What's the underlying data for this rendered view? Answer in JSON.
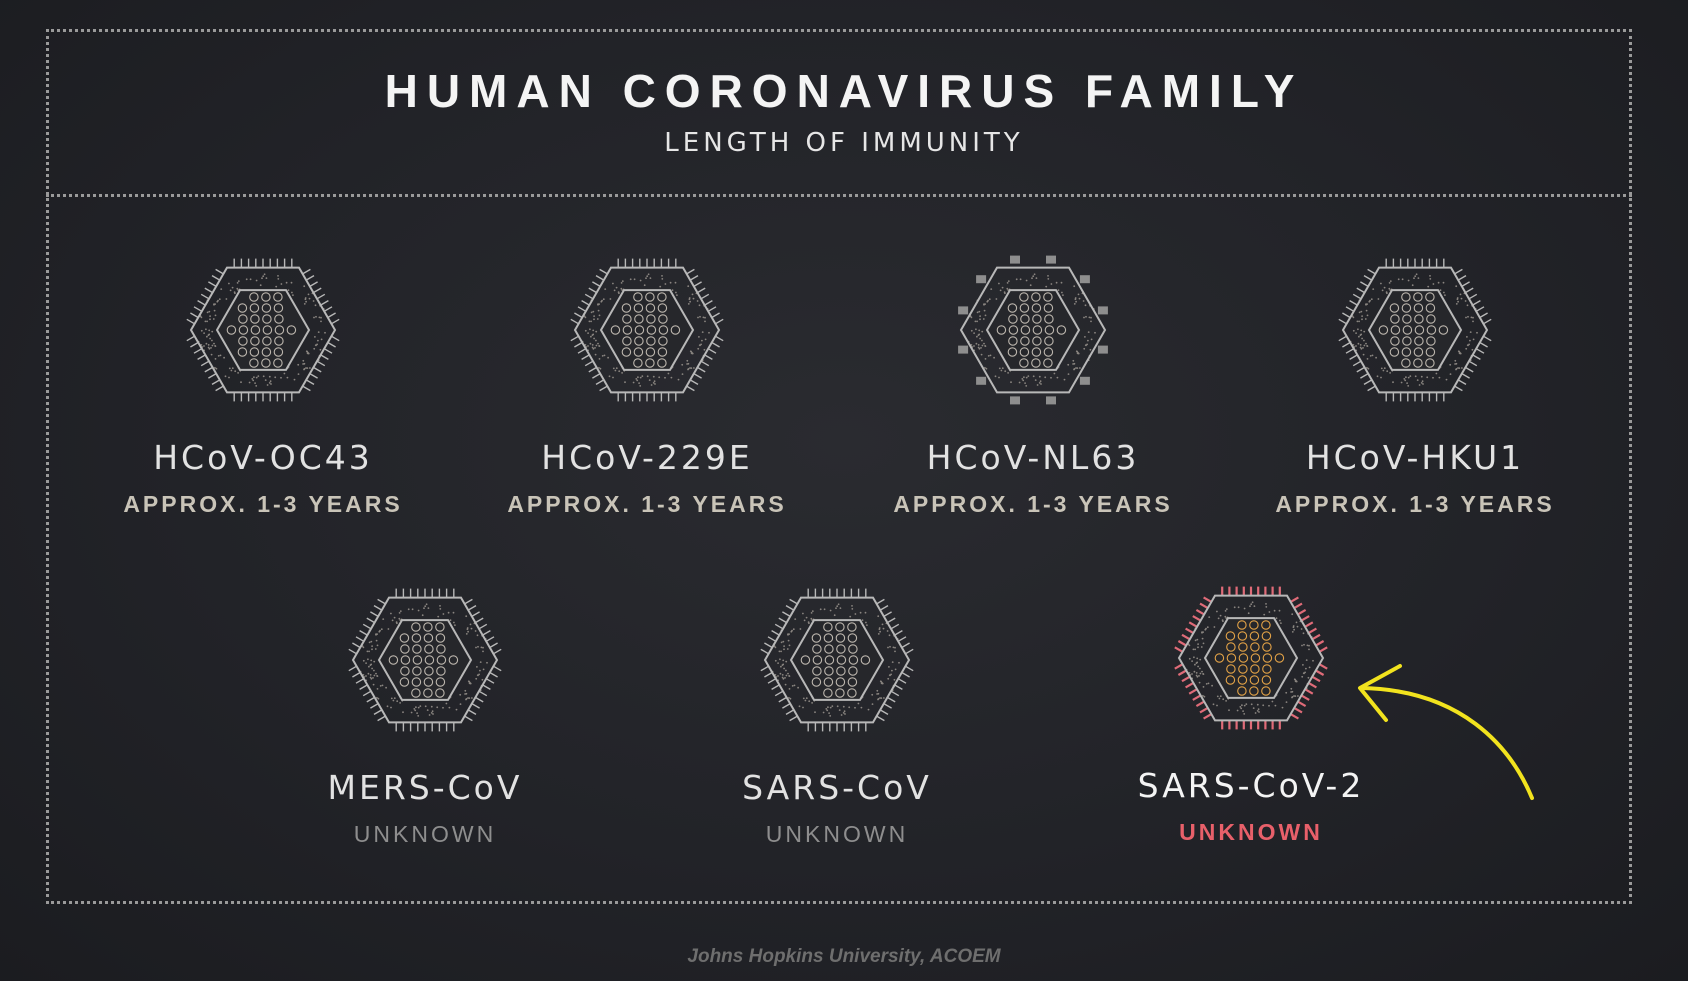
{
  "header": {
    "title": "HUMAN CORONAVIRUS FAMILY",
    "subtitle": "LENGTH OF IMMUNITY"
  },
  "viruses": [
    {
      "name": "HCoV-OC43",
      "duration": "APPROX. 1-3 YEARS",
      "spike_style": "ticks",
      "highlight": false
    },
    {
      "name": "HCoV-229E",
      "duration": "APPROX. 1-3 YEARS",
      "spike_style": "ticks",
      "highlight": false
    },
    {
      "name": "HCoV-NL63",
      "duration": "APPROX. 1-3 YEARS",
      "spike_style": "blocks",
      "highlight": false
    },
    {
      "name": "HCoV-HKU1",
      "duration": "APPROX. 1-3 YEARS",
      "spike_style": "ticks",
      "highlight": false
    },
    {
      "name": "MERS-CoV",
      "duration": "UNKNOWN",
      "spike_style": "ticks",
      "highlight": false
    },
    {
      "name": "SARS-CoV",
      "duration": "UNKNOWN",
      "spike_style": "ticks",
      "highlight": false
    },
    {
      "name": "SARS-CoV-2",
      "duration": "UNKNOWN",
      "spike_style": "ticks",
      "highlight": true
    }
  ],
  "source": "Johns Hopkins University, ACOEM",
  "colors": {
    "background": "#222328",
    "outline": "#b8b8b8",
    "highlight_spikes": "#e06b78",
    "highlight_text": "#e8606a",
    "arrow": "#f2e31e",
    "inner_warm": "#e3a347"
  },
  "icons": {
    "virus": "hexagon-virus-icon",
    "arrow": "curved-arrow-icon"
  }
}
